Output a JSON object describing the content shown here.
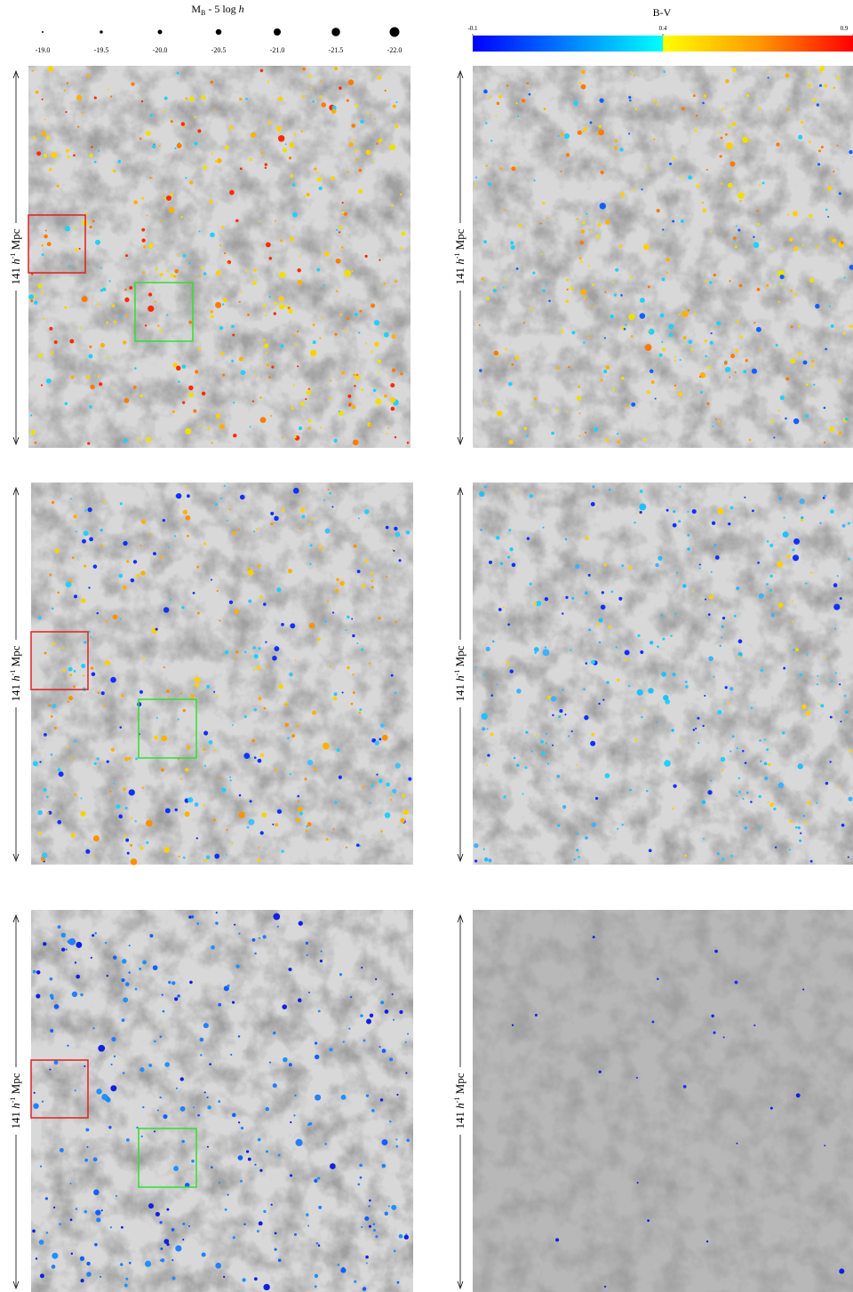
{
  "magnitude_legend": {
    "title": {
      "symbol": "M",
      "subscript": "B",
      "rest": " - 5 log ",
      "h": "h"
    },
    "ticks": [
      {
        "value": -19.0,
        "label": "-19.0"
      },
      {
        "value": -19.5,
        "label": "-19.5"
      },
      {
        "value": -20.0,
        "label": "-20.0"
      },
      {
        "value": -20.5,
        "label": "-20.5"
      },
      {
        "value": -21.0,
        "label": "-21.0"
      },
      {
        "value": -21.5,
        "label": "-21.5"
      },
      {
        "value": -22.0,
        "label": "-22.0"
      }
    ]
  },
  "color_bar": {
    "title": "B-V",
    "clim": [
      -0.1,
      0.9
    ],
    "ticks": [
      -0.1,
      0.4,
      0.9
    ]
  },
  "scale_bar": {
    "number": "141 ",
    "h": "h",
    "exponent": "-1",
    "unit": "  Mpc"
  }
}
